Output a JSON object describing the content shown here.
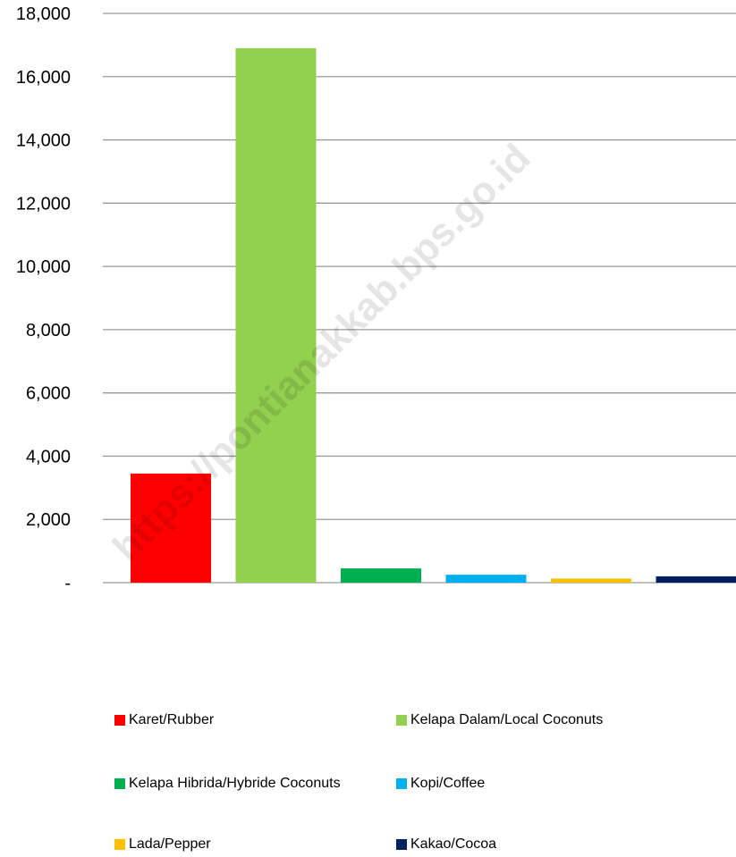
{
  "chart_data": {
    "type": "bar",
    "categories": [
      "Karet/Rubber",
      "Kelapa Dalam/Local Coconuts",
      "Kelapa Hibrida/Hybride Coconuts",
      "Kopi/Coffee",
      "Lada/Pepper",
      "Kakao/Cocoa"
    ],
    "values": [
      3450,
      16900,
      450,
      250,
      130,
      200
    ],
    "colors": [
      "#ff0000",
      "#92d050",
      "#00b050",
      "#00b0f0",
      "#ffc000",
      "#002060"
    ],
    "ylim": [
      0,
      18000
    ],
    "yticks": [
      0,
      2000,
      4000,
      6000,
      8000,
      10000,
      12000,
      14000,
      16000,
      18000
    ],
    "ytick_labels": [
      "-",
      "2,000",
      "4,000",
      "6,000",
      "8,000",
      "10,000",
      "12,000",
      "14,000",
      "16,000",
      "18,000"
    ],
    "grid": true,
    "legend_position": "bottom",
    "title": "",
    "xlabel": "",
    "ylabel": ""
  },
  "legend": {
    "items": [
      {
        "label": "Karet/Rubber",
        "color": "#ff0000"
      },
      {
        "label": "Kelapa Dalam/Local Coconuts",
        "color": "#92d050"
      },
      {
        "label": "Kelapa Hibrida/Hybride Coconuts",
        "color": "#00b050"
      },
      {
        "label": "Kopi/Coffee",
        "color": "#00b0f0"
      },
      {
        "label": "Lada/Pepper",
        "color": "#ffc000"
      },
      {
        "label": "Kakao/Cocoa",
        "color": "#002060"
      }
    ]
  },
  "watermark": "https://pontianakkab.bps.go.id"
}
